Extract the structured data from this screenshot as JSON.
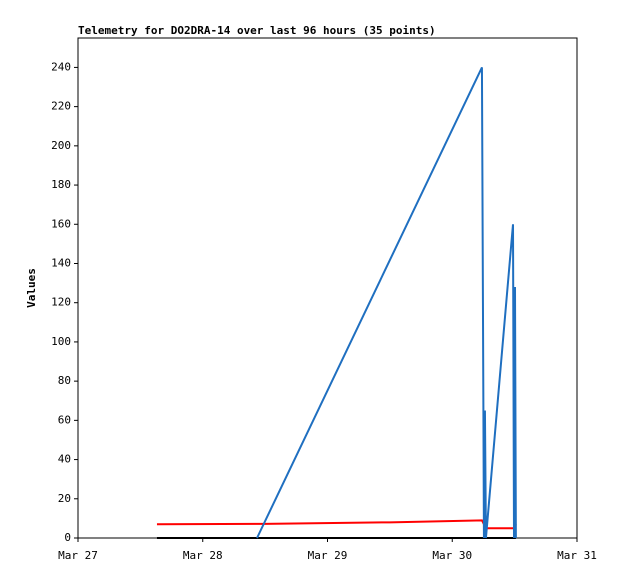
{
  "chart_data": {
    "type": "line",
    "title": "Telemetry for DO2DRA-14 over last 96 hours (35 points)",
    "y_label": "Values",
    "xlim": [
      0,
      4
    ],
    "xticks": [
      {
        "value": 0,
        "label": "Mar 27"
      },
      {
        "value": 1,
        "label": "Mar 28"
      },
      {
        "value": 2,
        "label": "Mar 29"
      },
      {
        "value": 3,
        "label": "Mar 30"
      },
      {
        "value": 4,
        "label": "Mar 31"
      }
    ],
    "ylim": [
      0,
      255
    ],
    "yticks": [
      0,
      20,
      40,
      60,
      80,
      100,
      120,
      140,
      160,
      180,
      200,
      220,
      240
    ],
    "series": [
      {
        "color": "#000000",
        "x": [
          0.633,
          3.51
        ],
        "values": [
          0,
          0
        ]
      },
      {
        "color": "#ff0000",
        "x": [
          0.633,
          1.5,
          2.5,
          3.238,
          3.27,
          3.5,
          3.51
        ],
        "values": [
          7,
          7.2,
          8,
          9,
          5,
          5,
          7
        ]
      },
      {
        "color": "#1f6fc0",
        "x": [
          1.435,
          3.238,
          3.246,
          3.254,
          3.262,
          3.27,
          3.487,
          3.495,
          3.503,
          3.51
        ],
        "values": [
          0,
          240,
          120,
          0,
          65,
          0,
          160,
          0,
          128,
          0
        ]
      }
    ]
  }
}
